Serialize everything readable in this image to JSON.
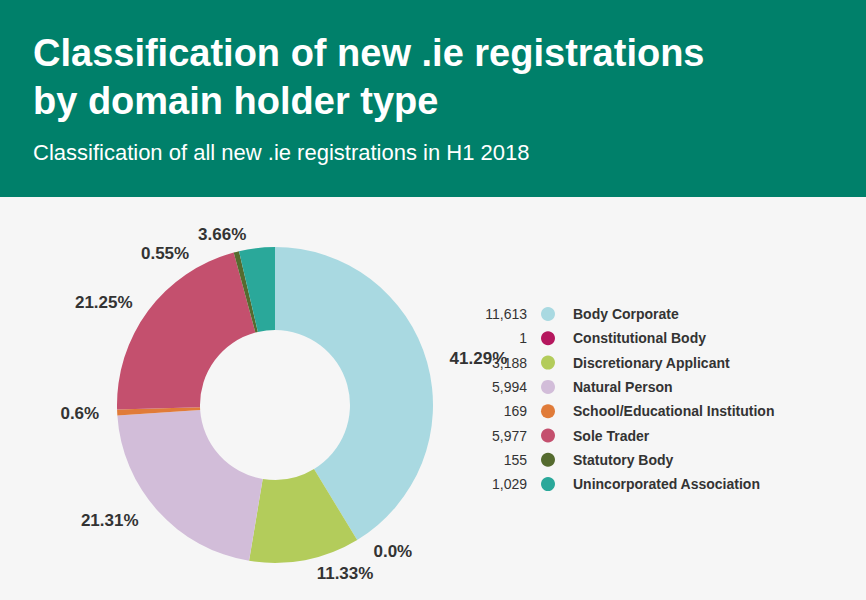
{
  "chart_data": {
    "type": "pie",
    "title": "Classification of new .ie registrations\nby domain holder type",
    "subtitle": "Classification of all new .ie registrations in H1 2018",
    "categories": [
      "Body Corporate",
      "Constitutional Body",
      "Discretionary Applicant",
      "Natural Person",
      "School/Educational Institution",
      "Sole Trader",
      "Statutory Body",
      "Unincorporated Association"
    ],
    "values": [
      41.29,
      0.0,
      11.33,
      21.31,
      0.6,
      21.25,
      0.55,
      3.66
    ],
    "value_labels": [
      "41.29%",
      "0.0%",
      "11.33%",
      "21.31%",
      "0.6%",
      "21.25%",
      "0.55%",
      "3.66%"
    ],
    "counts": [
      {
        "value": 11613,
        "label": "11,613"
      },
      1,
      {
        "value": 3188,
        "label": "3,188"
      },
      {
        "value": 5994,
        "label": "5,994"
      },
      169,
      {
        "value": 5977,
        "label": "5,977"
      },
      155,
      {
        "value": 1029,
        "label": "1,029"
      }
    ],
    "colors": [
      "#a9d9e1",
      "#b5175e",
      "#b3cc5b",
      "#d2bdd9",
      "#e07b39",
      "#c4506e",
      "#556b2f",
      "#2aa89a"
    ],
    "data_labels": true,
    "legend": "right"
  }
}
